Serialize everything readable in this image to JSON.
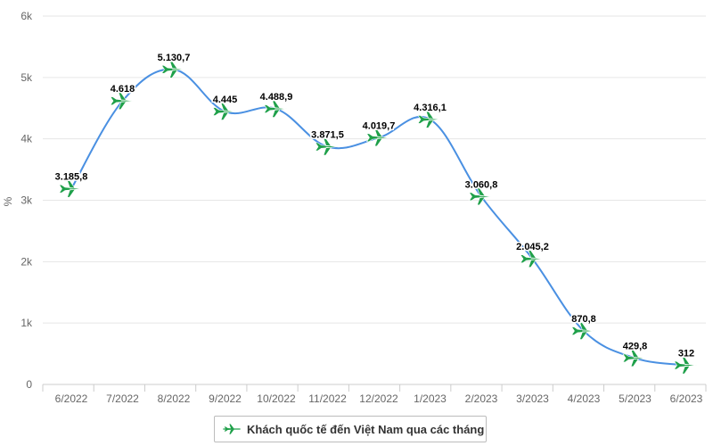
{
  "chart_data": {
    "type": "line",
    "ylabel": "%",
    "ylim": [
      0,
      6000
    ],
    "yticks": [
      0,
      1000,
      2000,
      3000,
      4000,
      5000,
      6000
    ],
    "ytick_labels": [
      "0",
      "1k",
      "2k",
      "3k",
      "4k",
      "5k",
      "6k"
    ],
    "grid": true,
    "legend_placement": "bottom",
    "categories": [
      "6/2022",
      "7/2022",
      "8/2022",
      "9/2022",
      "10/2022",
      "11/2022",
      "12/2022",
      "1/2023",
      "2/2023",
      "3/2023",
      "4/2023",
      "5/2023",
      "6/2023"
    ],
    "series": [
      {
        "name": "Khách quốc tế đến Việt Nam qua các tháng",
        "color": "#4a90e2",
        "marker_color": "#1fa04a",
        "marker": "airplane-icon",
        "values": [
          3185.8,
          4618,
          5130.7,
          4445,
          4488.9,
          3871.5,
          4019.7,
          4316.1,
          3060.8,
          2045.2,
          870.8,
          429.8,
          312
        ],
        "labels": [
          "3.185,8",
          "4.618",
          "5.130,7",
          "4.445",
          "4.488,9",
          "3.871,5",
          "4.019,7",
          "4.316,1",
          "3.060,8",
          "2.045,2",
          "870,8",
          "429,8",
          "312"
        ]
      }
    ]
  },
  "legend": {
    "label": "Khách quốc tế đến Việt Nam qua các tháng",
    "icon": "airplane-icon"
  }
}
